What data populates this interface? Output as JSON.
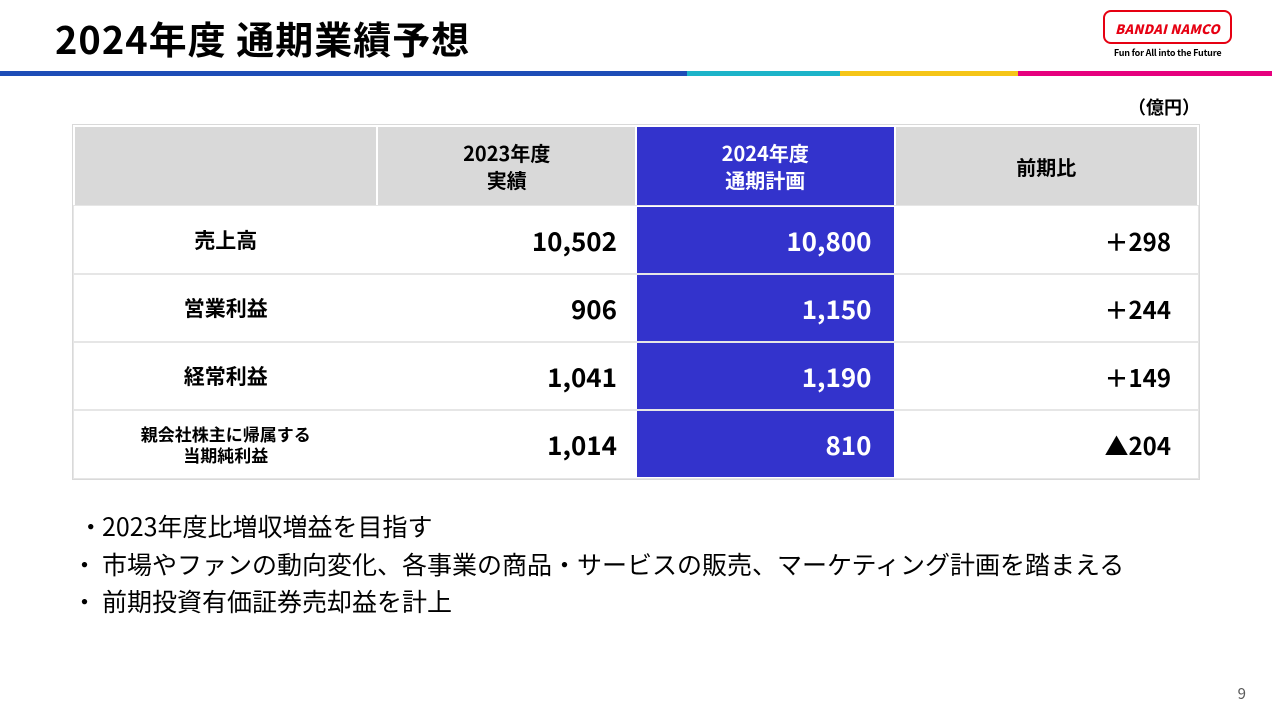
{
  "header": {
    "title": "2024年度 通期業績予想",
    "logo_text": "BANDAI NAMCO",
    "tagline": "Fun for All into the Future",
    "logo_border_color": "#e60012"
  },
  "rule_segments": [
    {
      "color": "#1e4db7",
      "width_pct": 54
    },
    {
      "color": "#1db4c9",
      "width_pct": 12
    },
    {
      "color": "#f5c518",
      "width_pct": 14
    },
    {
      "color": "#e6007e",
      "width_pct": 20
    }
  ],
  "unit_label": "（億円）",
  "table": {
    "type": "table",
    "header_bg_grey": "#d9d9d9",
    "header_bg_blue": "#3333cc",
    "header_fg_blue": "#ffffff",
    "cell_border_color": "#ffffff",
    "columns": [
      {
        "label": "",
        "kind": "blank"
      },
      {
        "label": "2023年度\n実績",
        "kind": "grey"
      },
      {
        "label": "2024年度\n通期計画",
        "kind": "blue"
      },
      {
        "label": "前期比",
        "kind": "grey"
      }
    ],
    "rows": [
      {
        "label": "売上高",
        "label_small": false,
        "actual": "10,502",
        "plan": "10,800",
        "diff": "＋298"
      },
      {
        "label": "営業利益",
        "label_small": false,
        "actual": "906",
        "plan": "1,150",
        "diff": "＋244"
      },
      {
        "label": "経常利益",
        "label_small": false,
        "actual": "1,041",
        "plan": "1,190",
        "diff": "＋149"
      },
      {
        "label": "親会社株主に帰属する\n当期純利益",
        "label_small": true,
        "actual": "1,014",
        "plan": "810",
        "diff": "▲204"
      }
    ]
  },
  "bullets": [
    " 2023年度比増収増益を目指す",
    "市場やファンの動向変化、各事業の商品・サービスの販売、マーケティング計画を踏まえる",
    "前期投資有価証券売却益を計上"
  ],
  "page_number": "9"
}
